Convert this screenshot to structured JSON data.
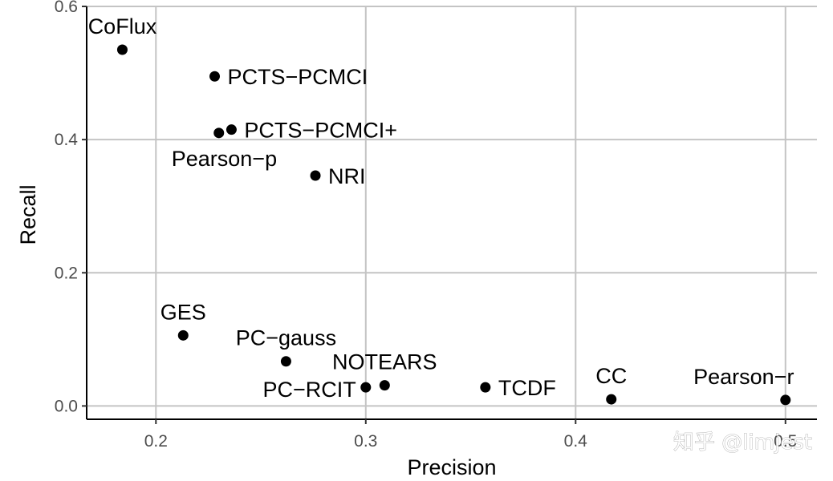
{
  "chart_data": {
    "type": "scatter",
    "title": "",
    "xlabel": "Precision",
    "ylabel": "Recall",
    "xlim": [
      0.167,
      0.515
    ],
    "ylim": [
      -0.02,
      0.6
    ],
    "x_ticks": [
      0.2,
      0.3,
      0.4,
      0.5
    ],
    "x_tick_labels": [
      "0.2",
      "0.3",
      "0.4",
      "0.5"
    ],
    "y_ticks": [
      0.0,
      0.2,
      0.4,
      0.6
    ],
    "y_tick_labels": [
      "0.0",
      "0.2",
      "0.4",
      "0.6"
    ],
    "grid": true,
    "legend": "none",
    "point_color": "#000000",
    "grid_color": "#c4c4c4",
    "points": [
      {
        "label": "CoFlux",
        "x": 0.184,
        "y": 0.535,
        "label_anchor": "above"
      },
      {
        "label": "PCTS−PCMCI",
        "x": 0.228,
        "y": 0.495,
        "label_anchor": "right"
      },
      {
        "label": "Pearson−p",
        "x": 0.23,
        "y": 0.41,
        "label_anchor": "below-left"
      },
      {
        "label": "PCTS−PCMCI+",
        "x": 0.236,
        "y": 0.415,
        "label_anchor": "right"
      },
      {
        "label": "NRI",
        "x": 0.276,
        "y": 0.346,
        "label_anchor": "right"
      },
      {
        "label": "GES",
        "x": 0.213,
        "y": 0.106,
        "label_anchor": "above"
      },
      {
        "label": "PC−gauss",
        "x": 0.262,
        "y": 0.067,
        "label_anchor": "above"
      },
      {
        "label": "PC−RCIT",
        "x": 0.3,
        "y": 0.028,
        "label_anchor": "left"
      },
      {
        "label": "NOTEARS",
        "x": 0.309,
        "y": 0.031,
        "label_anchor": "above"
      },
      {
        "label": "TCDF",
        "x": 0.357,
        "y": 0.028,
        "label_anchor": "right"
      },
      {
        "label": "CC",
        "x": 0.417,
        "y": 0.01,
        "label_anchor": "above"
      },
      {
        "label": "Pearson−r",
        "x": 0.5,
        "y": 0.009,
        "label_anchor": "above-left"
      }
    ]
  },
  "watermark": "知乎 @limjest"
}
